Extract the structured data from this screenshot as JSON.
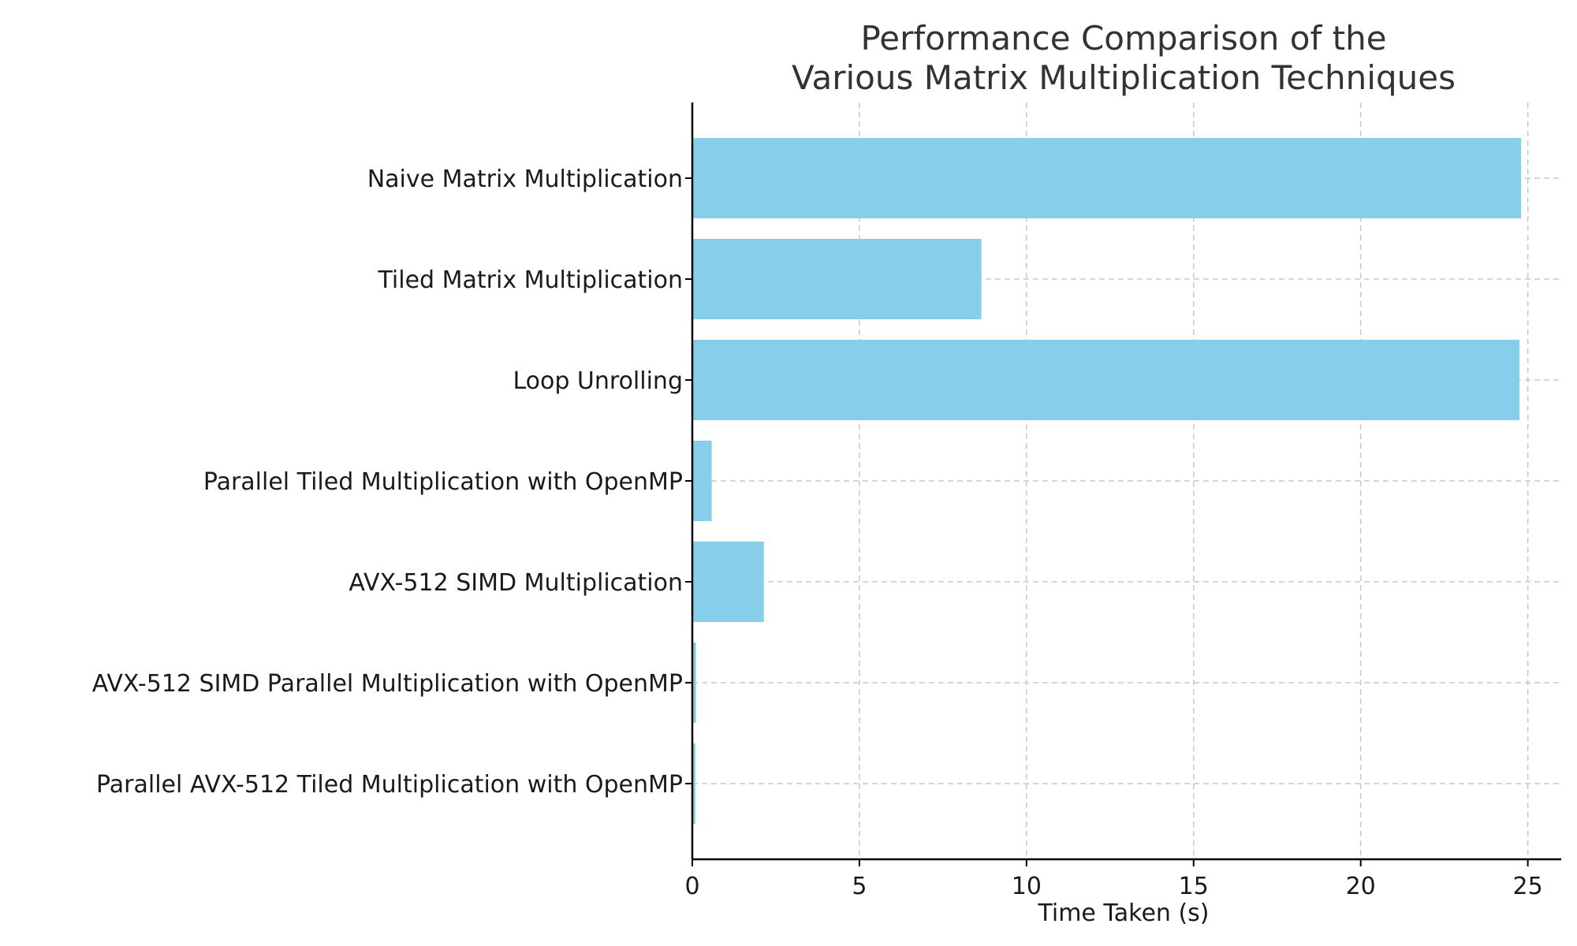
{
  "chart_data": {
    "type": "bar",
    "orientation": "horizontal",
    "title": [
      "Performance Comparison of the",
      "Various Matrix Multiplication Techniques"
    ],
    "xlabel": "Time Taken (s)",
    "ylabel": "",
    "categories": [
      "Naive Matrix Multiplication",
      "Tiled Matrix Multiplication",
      "Loop Unrolling",
      "Parallel Tiled Multiplication with OpenMP",
      "AVX-512 SIMD Multiplication",
      "AVX-512 SIMD Parallel Multiplication with OpenMP",
      "Parallel AVX-512 Tiled Multiplication with OpenMP"
    ],
    "values": [
      24.8,
      8.65,
      24.75,
      0.58,
      2.14,
      0.11,
      0.09
    ],
    "xticks": [
      0,
      5,
      10,
      15,
      20,
      25
    ],
    "xlim": [
      0,
      26.0
    ],
    "grid": true,
    "legend": "none",
    "colors": {
      "bar": "#87ceeb",
      "grid": "#c8c8c8",
      "axis": "#000000",
      "title": "#333333",
      "text": "#1a1a1a"
    }
  }
}
